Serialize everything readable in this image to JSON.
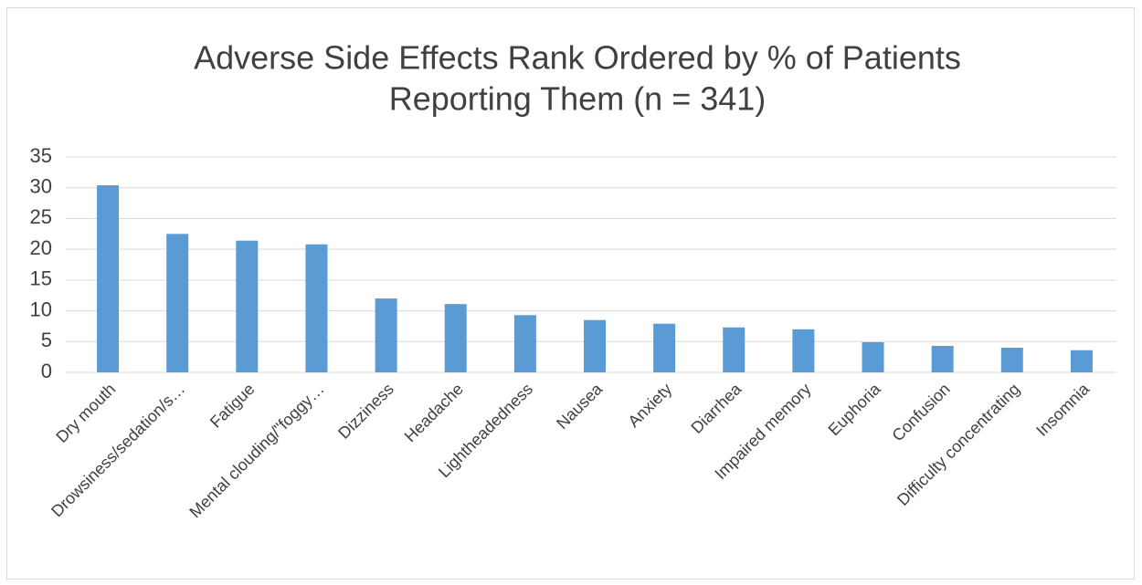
{
  "chart_data": {
    "type": "bar",
    "title": [
      "Adverse Side Effects Rank Ordered by % of Patients",
      "Reporting Them (n = 341)"
    ],
    "categories": [
      "Dry mouth",
      "Drowsiness/sedation/s…",
      "Fatigue",
      "Mental clouding/\"foggy…",
      "Dizziness",
      "Headache",
      "Lightheadedness",
      "Nausea",
      "Anxiety",
      "Diarrhea",
      "Impaired memory",
      "Euphoria",
      "Confusion",
      "Difficulty concentrating",
      "Insomnia"
    ],
    "values": [
      30.4,
      22.5,
      21.4,
      20.8,
      12.0,
      11.1,
      9.3,
      8.5,
      7.9,
      7.3,
      7.0,
      4.9,
      4.3,
      4.0,
      3.6
    ],
    "color": "#5b9bd5",
    "ylim": [
      0,
      35
    ],
    "yticks": [
      0,
      5,
      10,
      15,
      20,
      25,
      30,
      35
    ],
    "grid": true
  }
}
